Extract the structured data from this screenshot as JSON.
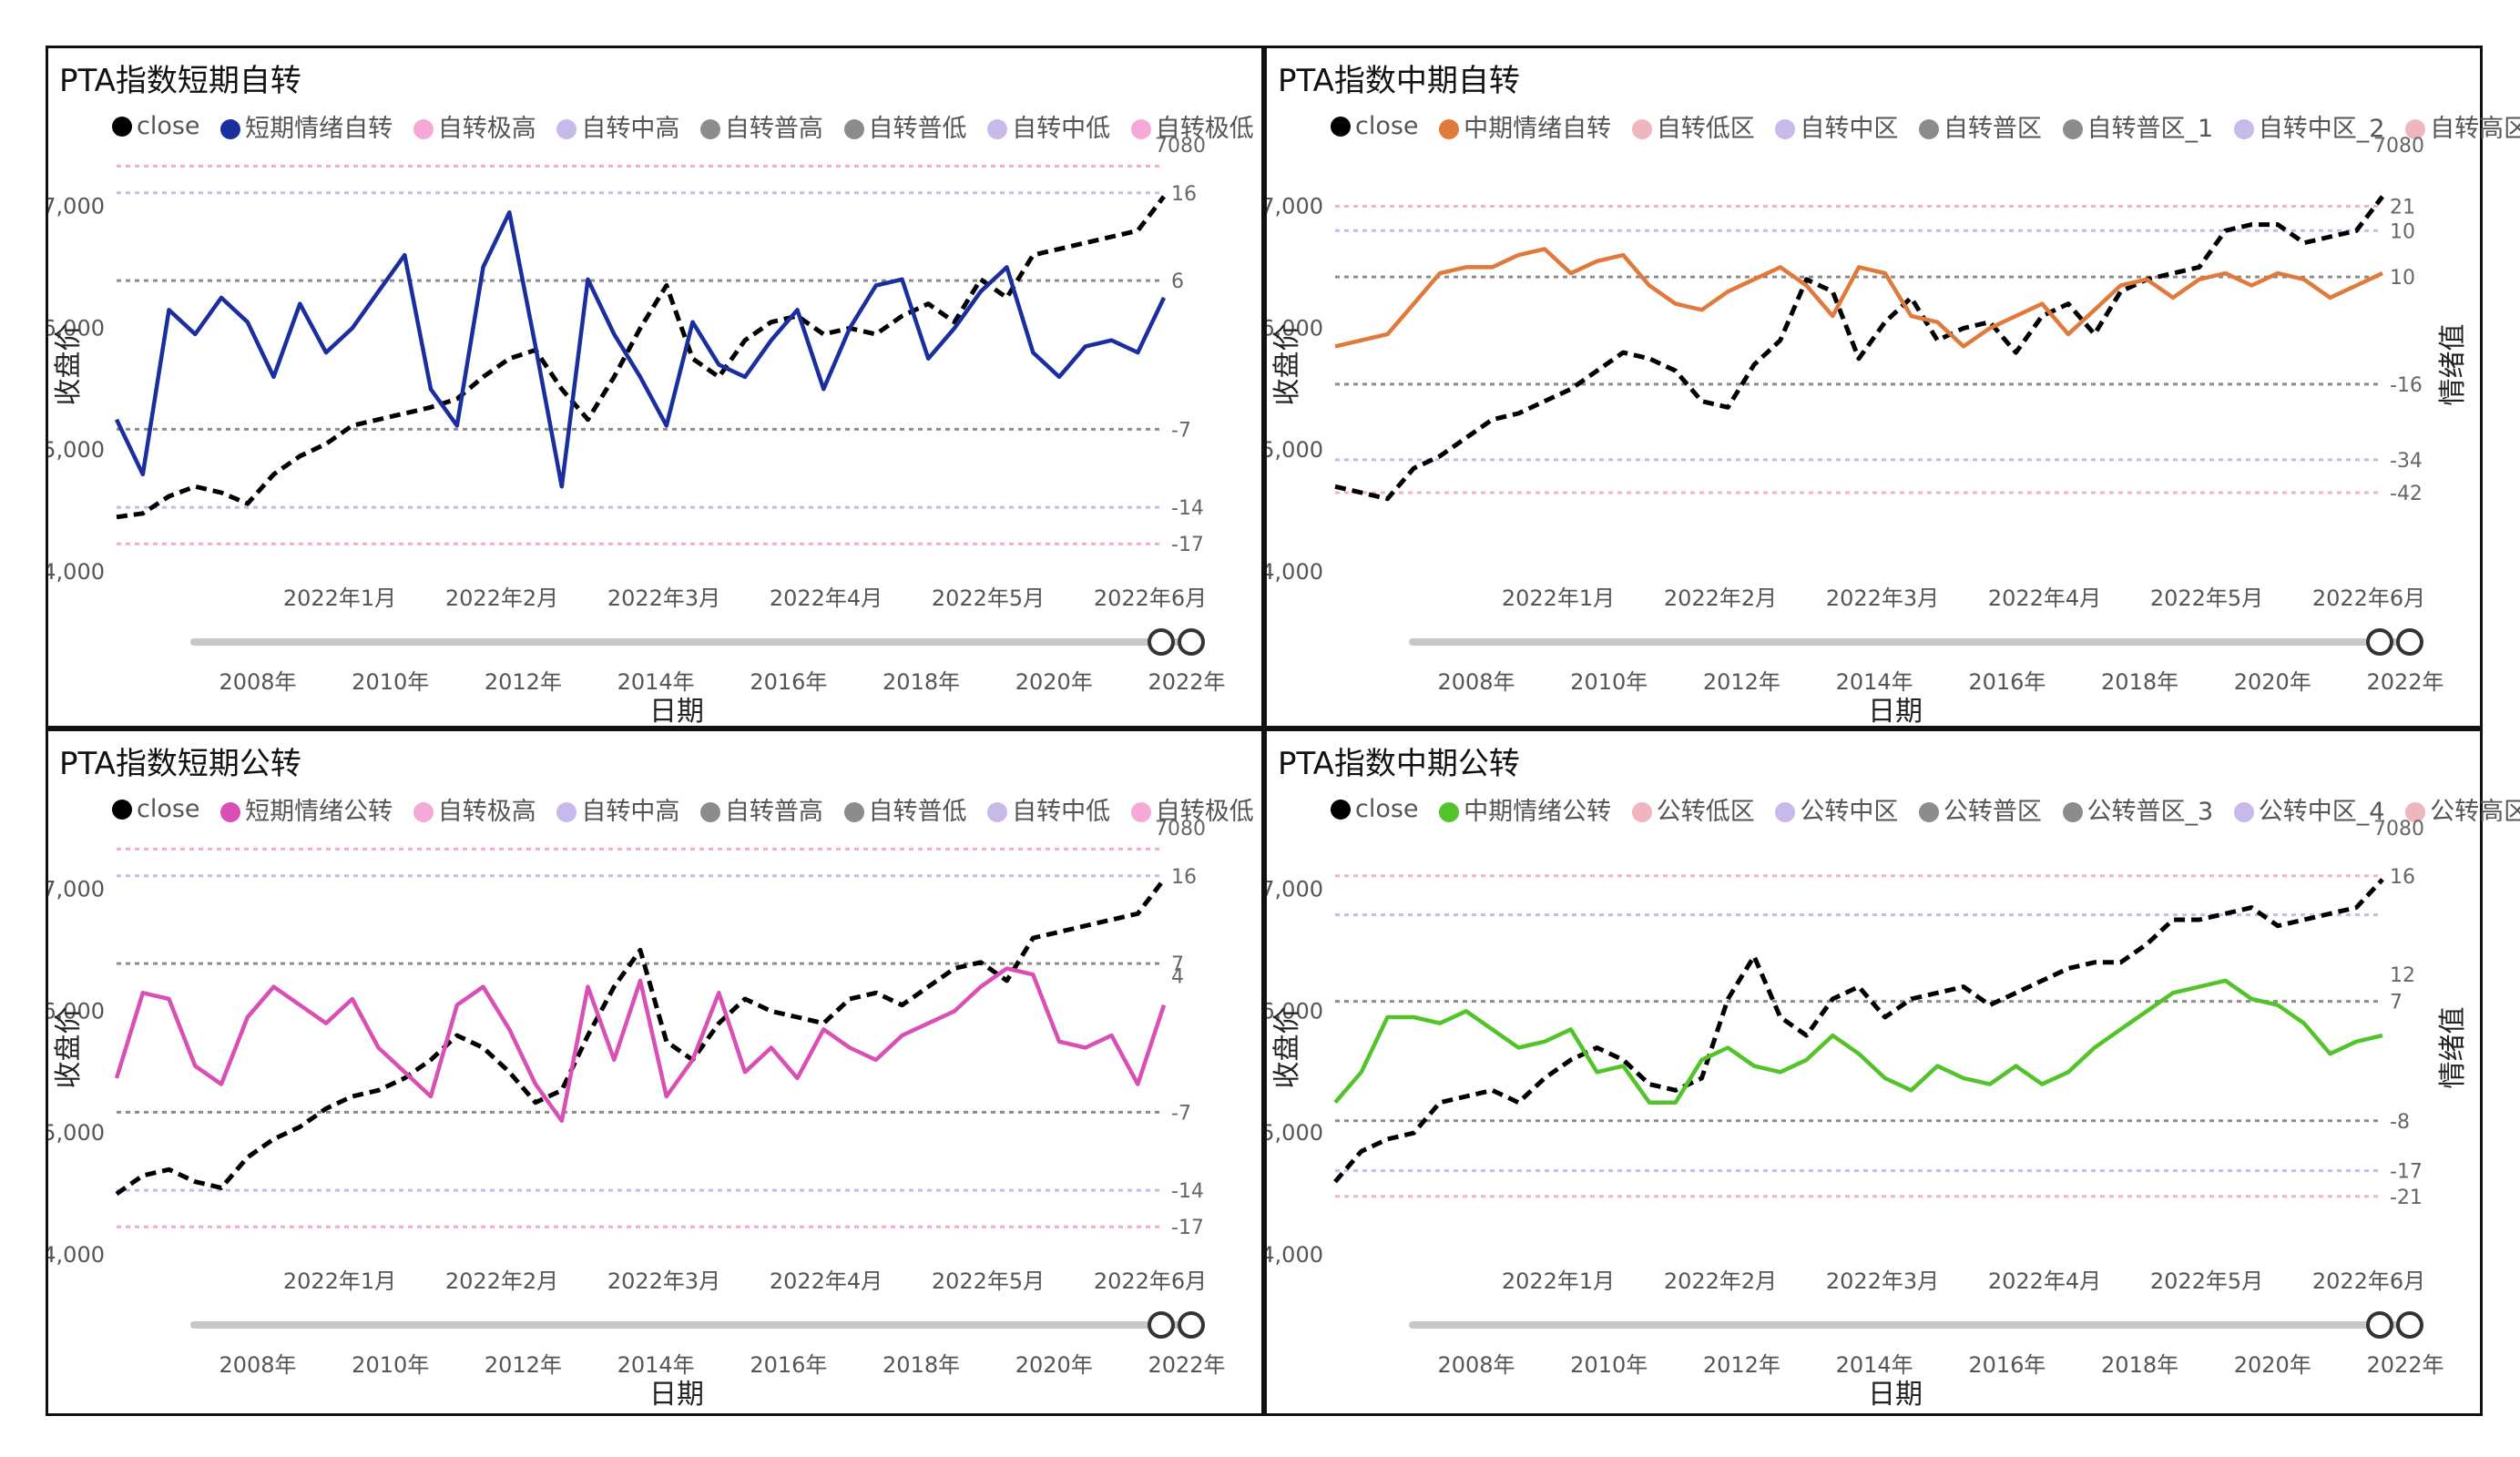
{
  "chart_data": [
    {
      "type": "line",
      "title": "PTA指数短期自转",
      "xlabel": "日期",
      "ylabel": "收盘价",
      "y2label": "",
      "ylim": [
        4000,
        7400
      ],
      "yticks": [
        "4,000",
        "5,000",
        "6,000",
        "7,000"
      ],
      "month_ticks": [
        "2022年1月",
        "2022年2月",
        "2022年3月",
        "2022年4月",
        "2022年5月",
        "2022年6月"
      ],
      "year_ticks": [
        "2008年",
        "2010年",
        "2012年",
        "2014年",
        "2016年",
        "2018年",
        "2020年",
        "2022年"
      ],
      "legend": [
        {
          "name": "close",
          "color": "#000000"
        },
        {
          "name": "短期情绪自转",
          "color": "#1a2e9e"
        },
        {
          "name": "自转极高",
          "color": "#f4a9d6"
        },
        {
          "name": "自转中高",
          "color": "#c7b9ea"
        },
        {
          "name": "自转普高",
          "color": "#8c8c8c"
        },
        {
          "name": "自转普低",
          "color": "#8c8c8c"
        },
        {
          "name": "自转中低",
          "color": "#c7b9ea"
        },
        {
          "name": "自转极低",
          "color": "#f4a9d6"
        }
      ],
      "ref_lines": [
        {
          "label": "",
          "y": 7330,
          "color": "#f4a9d6"
        },
        {
          "label": "16",
          "y": 7110,
          "color": "#c7b9ea"
        },
        {
          "label": "6",
          "y": 6390,
          "color": "#8c8c8c"
        },
        {
          "label": "-7",
          "y": 5170,
          "color": "#8c8c8c"
        },
        {
          "label": "-14",
          "y": 4530,
          "color": "#c7b9ea"
        },
        {
          "label": "-17",
          "y": 4230,
          "color": "#f4a9d6"
        }
      ],
      "close_last_label": "7080",
      "series": [
        {
          "name": "close",
          "color": "#000000",
          "values": [
            4450,
            4480,
            4620,
            4700,
            4650,
            4560,
            4800,
            4950,
            5050,
            5200,
            5250,
            5300,
            5350,
            5420,
            5600,
            5750,
            5820,
            5500,
            5250,
            5600,
            6000,
            6350,
            5750,
            5600,
            5900,
            6050,
            6100,
            5950,
            6000,
            5950,
            6100,
            6200,
            6050,
            6400,
            6250,
            6600,
            6650,
            6700,
            6750,
            6800,
            7080
          ]
        },
        {
          "name": "短期情绪自转",
          "color": "#1a2e9e",
          "values": [
            5250,
            4800,
            6150,
            5950,
            6250,
            6050,
            5600,
            6200,
            5800,
            6000,
            6300,
            6600,
            5500,
            5200,
            6500,
            6950,
            5850,
            4700,
            6400,
            5950,
            5600,
            5200,
            6050,
            5700,
            5600,
            5900,
            6150,
            5500,
            6000,
            6350,
            6400,
            5750,
            6000,
            6300,
            6500,
            5800,
            5600,
            5850,
            5900,
            5800,
            6250
          ]
        }
      ]
    },
    {
      "type": "line",
      "title": "PTA指数中期自转",
      "xlabel": "日期",
      "ylabel": "收盘价",
      "y2label": "情绪值",
      "ylim": [
        4000,
        7400
      ],
      "yticks": [
        "4,000",
        "5,000",
        "6,000",
        "7,000"
      ],
      "month_ticks": [
        "2022年1月",
        "2022年2月",
        "2022年3月",
        "2022年4月",
        "2022年5月",
        "2022年6月"
      ],
      "year_ticks": [
        "2008年",
        "2010年",
        "2012年",
        "2014年",
        "2016年",
        "2018年",
        "2020年",
        "2022年"
      ],
      "legend": [
        {
          "name": "close",
          "color": "#000000"
        },
        {
          "name": "中期情绪自转",
          "color": "#e07a3c"
        },
        {
          "name": "自转低区",
          "color": "#f0b6bd"
        },
        {
          "name": "自转中区",
          "color": "#c7b9ea"
        },
        {
          "name": "自转普区",
          "color": "#8c8c8c"
        },
        {
          "name": "自转普区_1",
          "color": "#8c8c8c"
        },
        {
          "name": "自转中区_2",
          "color": "#c7b9ea"
        },
        {
          "name": "自转高区",
          "color": "#f0b6bd"
        }
      ],
      "ref_lines": [
        {
          "label": "21",
          "y": 7000,
          "color": "#f0b6bd"
        },
        {
          "label": "10",
          "y": 6800,
          "color": "#c7b9ea"
        },
        {
          "label": "10",
          "y": 6420,
          "color": "#8c8c8c"
        },
        {
          "label": "-16",
          "y": 5540,
          "color": "#8c8c8c"
        },
        {
          "label": "-34",
          "y": 4920,
          "color": "#c7b9ea"
        },
        {
          "label": "-42",
          "y": 4650,
          "color": "#f0b6bd"
        }
      ],
      "close_last_label": "7080",
      "series": [
        {
          "name": "close",
          "color": "#000000",
          "values": [
            4700,
            4650,
            4600,
            4850,
            4950,
            5100,
            5250,
            5300,
            5400,
            5500,
            5650,
            5800,
            5750,
            5650,
            5400,
            5350,
            5700,
            5900,
            6400,
            6300,
            5750,
            6050,
            6250,
            5900,
            6000,
            6050,
            5800,
            6100,
            6200,
            5950,
            6300,
            6400,
            6450,
            6500,
            6800,
            6850,
            6850,
            6700,
            6750,
            6800,
            7080
          ]
        },
        {
          "name": "中期情绪自转",
          "color": "#e07a3c",
          "values": [
            5850,
            5900,
            5950,
            6200,
            6450,
            6500,
            6500,
            6600,
            6650,
            6450,
            6550,
            6600,
            6350,
            6200,
            6150,
            6300,
            6400,
            6500,
            6350,
            6100,
            6500,
            6450,
            6100,
            6050,
            5850,
            6000,
            6100,
            6200,
            5950,
            6150,
            6350,
            6400,
            6250,
            6400,
            6450,
            6350,
            6450,
            6400,
            6250,
            6350,
            6450
          ]
        }
      ]
    },
    {
      "type": "line",
      "title": "PTA指数短期公转",
      "xlabel": "日期",
      "ylabel": "收盘价",
      "y2label": "",
      "ylim": [
        4000,
        7400
      ],
      "yticks": [
        "4,000",
        "5,000",
        "6,000",
        "7,000"
      ],
      "month_ticks": [
        "2022年1月",
        "2022年2月",
        "2022年3月",
        "2022年4月",
        "2022年5月",
        "2022年6月"
      ],
      "year_ticks": [
        "2008年",
        "2010年",
        "2012年",
        "2014年",
        "2016年",
        "2018年",
        "2020年",
        "2022年"
      ],
      "legend": [
        {
          "name": "close",
          "color": "#000000"
        },
        {
          "name": "短期情绪公转",
          "color": "#d94fb3"
        },
        {
          "name": "自转极高",
          "color": "#f4a9d6"
        },
        {
          "name": "自转中高",
          "color": "#c7b9ea"
        },
        {
          "name": "自转普高",
          "color": "#8c8c8c"
        },
        {
          "name": "自转普低",
          "color": "#8c8c8c"
        },
        {
          "name": "自转中低",
          "color": "#c7b9ea"
        },
        {
          "name": "自转极低",
          "color": "#f4a9d6"
        }
      ],
      "ref_lines": [
        {
          "label": "",
          "y": 7330,
          "color": "#f4a9d6"
        },
        {
          "label": "16",
          "y": 7110,
          "color": "#c7b9ea"
        },
        {
          "label": "7",
          "y": 6390,
          "color": "#8c8c8c"
        },
        {
          "label": "-7",
          "y": 5170,
          "color": "#8c8c8c"
        },
        {
          "label": "-14",
          "y": 4530,
          "color": "#c7b9ea"
        },
        {
          "label": "-17",
          "y": 4230,
          "color": "#f4a9d6"
        }
      ],
      "extra_labels": [
        {
          "label": "4",
          "y": 6290
        }
      ],
      "close_last_label": "7080",
      "series": [
        {
          "name": "close",
          "color": "#000000",
          "values": [
            4500,
            4650,
            4700,
            4600,
            4550,
            4800,
            4950,
            5050,
            5200,
            5300,
            5350,
            5450,
            5600,
            5800,
            5700,
            5500,
            5250,
            5350,
            5800,
            6200,
            6500,
            5750,
            5600,
            5900,
            6100,
            6000,
            5950,
            5900,
            6100,
            6150,
            6050,
            6200,
            6350,
            6400,
            6250,
            6600,
            6650,
            6700,
            6750,
            6800,
            7080
          ]
        },
        {
          "name": "短期情绪公转",
          "color": "#d94fb3",
          "values": [
            5450,
            6150,
            6100,
            5550,
            5400,
            5950,
            6200,
            6050,
            5900,
            6100,
            5700,
            5500,
            5300,
            6050,
            6200,
            5850,
            5400,
            5100,
            6200,
            5600,
            6250,
            5300,
            5600,
            6150,
            5500,
            5700,
            5450,
            5850,
            5700,
            5600,
            5800,
            5900,
            6000,
            6200,
            6350,
            6300,
            5750,
            5700,
            5800,
            5400,
            6050
          ]
        }
      ]
    },
    {
      "type": "line",
      "title": "PTA指数中期公转",
      "xlabel": "日期",
      "ylabel": "收盘价",
      "y2label": "情绪值",
      "ylim": [
        4000,
        7400
      ],
      "yticks": [
        "4,000",
        "5,000",
        "6,000",
        "7,000"
      ],
      "month_ticks": [
        "2022年1月",
        "2022年2月",
        "2022年3月",
        "2022年4月",
        "2022年5月",
        "2022年6月"
      ],
      "year_ticks": [
        "2008年",
        "2010年",
        "2012年",
        "2014年",
        "2016年",
        "2018年",
        "2020年",
        "2022年"
      ],
      "legend": [
        {
          "name": "close",
          "color": "#000000"
        },
        {
          "name": "中期情绪公转",
          "color": "#52c42a"
        },
        {
          "name": "公转低区",
          "color": "#f0b6bd"
        },
        {
          "name": "公转中区",
          "color": "#c7b9ea"
        },
        {
          "name": "公转普区",
          "color": "#8c8c8c"
        },
        {
          "name": "公转普区_3",
          "color": "#8c8c8c"
        },
        {
          "name": "公转中区_4",
          "color": "#c7b9ea"
        },
        {
          "name": "公转高区",
          "color": "#f0b6bd"
        }
      ],
      "ref_lines": [
        {
          "label": "16",
          "y": 7110,
          "color": "#f0b6bd"
        },
        {
          "label": "",
          "y": 6790,
          "color": "#c7b9ea"
        },
        {
          "label": "7",
          "y": 6080,
          "color": "#8c8c8c"
        },
        {
          "label": "-8",
          "y": 5100,
          "color": "#8c8c8c"
        },
        {
          "label": "-17",
          "y": 4690,
          "color": "#c7b9ea"
        },
        {
          "label": "-21",
          "y": 4480,
          "color": "#f0b6bd"
        }
      ],
      "extra_labels": [
        {
          "label": "12",
          "y": 6300
        }
      ],
      "close_last_label": "7080",
      "series": [
        {
          "name": "close",
          "color": "#000000",
          "values": [
            4600,
            4850,
            4950,
            5000,
            5250,
            5300,
            5350,
            5250,
            5450,
            5600,
            5700,
            5600,
            5400,
            5350,
            5450,
            6100,
            6450,
            5950,
            5800,
            6100,
            6200,
            5950,
            6100,
            6150,
            6200,
            6050,
            6150,
            6250,
            6350,
            6400,
            6400,
            6550,
            6750,
            6750,
            6800,
            6850,
            6700,
            6750,
            6800,
            6850,
            7080
          ]
        },
        {
          "name": "中期情绪公转",
          "color": "#52c42a",
          "values": [
            5250,
            5500,
            5950,
            5950,
            5900,
            6000,
            5850,
            5700,
            5750,
            5850,
            5500,
            5550,
            5250,
            5250,
            5600,
            5700,
            5550,
            5500,
            5600,
            5800,
            5650,
            5450,
            5350,
            5550,
            5450,
            5400,
            5550,
            5400,
            5500,
            5700,
            5850,
            6000,
            6150,
            6200,
            6250,
            6100,
            6050,
            5900,
            5650,
            5750,
            5800
          ]
        }
      ]
    }
  ]
}
